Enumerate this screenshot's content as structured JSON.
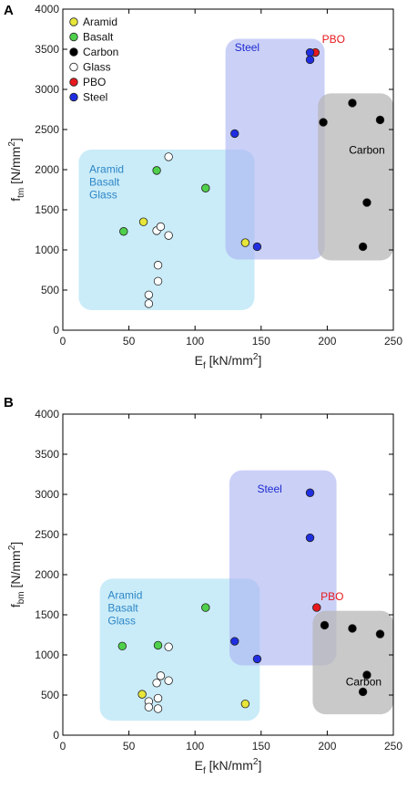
{
  "colors": {
    "Aramid": "#e7e639",
    "Basalt": "#4fd04a",
    "Carbon": "#000000",
    "Glass": "#ffffff",
    "PBO": "#e6191e",
    "Steel": "#1f2ee0",
    "region_glass": "#9fdcf2",
    "region_steel": "#a8b0f2",
    "region_carbon": "#b7b7b7",
    "region_glass_text": "#2e86c8",
    "region_steel_text": "#1d2bd0",
    "region_carbon_text": "#000000",
    "pbo_text": "#e6191e"
  },
  "legend": [
    "Aramid",
    "Basalt",
    "Carbon",
    "Glass",
    "PBO",
    "Steel"
  ],
  "chart_data": [
    {
      "panel": "A",
      "type": "scatter",
      "xlabel": {
        "main": "E",
        "sub": "f",
        "unit": " [kN/mm",
        "sup": "2",
        "close": "]"
      },
      "ylabel": {
        "main": "f",
        "sub": "tm",
        "unit": " [N/mm",
        "sup": "2",
        "close": "]"
      },
      "xlim": [
        0,
        250
      ],
      "ylim": [
        0,
        4000
      ],
      "xticks": [
        "0",
        "50",
        "100",
        "150",
        "200",
        "250"
      ],
      "yticks": [
        "0",
        "500",
        "1000",
        "1500",
        "2000",
        "2500",
        "3000",
        "3500",
        "4000"
      ],
      "xtick_values": [
        0,
        50,
        100,
        150,
        200,
        250
      ],
      "ytick_values": [
        0,
        500,
        1000,
        1500,
        2000,
        2500,
        3000,
        3500,
        4000
      ],
      "has_legend": true,
      "regions": [
        {
          "name": "glass",
          "labels": [
            "Aramid",
            "Basalt",
            "Glass"
          ],
          "x": [
            12,
            145
          ],
          "y": [
            250,
            2250
          ],
          "label_at": [
            20,
            1960
          ]
        },
        {
          "name": "steel",
          "labels": [
            "Steel"
          ],
          "x": [
            123,
            198
          ],
          "y": [
            880,
            3630
          ],
          "label_at": [
            130,
            3480
          ]
        },
        {
          "name": "carbon",
          "labels": [
            "Carbon"
          ],
          "x": [
            193,
            250
          ],
          "y": [
            870,
            2950
          ],
          "label_at": [
            230,
            2200
          ]
        }
      ],
      "annotations": [
        {
          "text": "PBO",
          "x": 196,
          "y": 3580
        }
      ],
      "series": [
        {
          "name": "Aramid",
          "x": [
            61,
            138
          ],
          "y": [
            1350,
            1090
          ]
        },
        {
          "name": "Basalt",
          "x": [
            46,
            71,
            108
          ],
          "y": [
            1230,
            1990,
            1770
          ]
        },
        {
          "name": "Carbon",
          "x": [
            197,
            219,
            240,
            230,
            227
          ],
          "y": [
            2590,
            2830,
            2620,
            1590,
            1040
          ]
        },
        {
          "name": "Glass",
          "x": [
            80,
            71,
            74,
            80,
            72,
            72,
            65,
            65
          ],
          "y": [
            2160,
            1240,
            1290,
            1180,
            810,
            610,
            440,
            330
          ]
        },
        {
          "name": "PBO",
          "x": [
            191
          ],
          "y": [
            3460
          ]
        },
        {
          "name": "Steel",
          "x": [
            187,
            187,
            130,
            147
          ],
          "y": [
            3460,
            3370,
            2450,
            1040
          ]
        }
      ]
    },
    {
      "panel": "B",
      "type": "scatter",
      "xlabel": {
        "main": "E",
        "sub": "f",
        "unit": " [kN/mm",
        "sup": "2",
        "close": "]"
      },
      "ylabel": {
        "main": "f",
        "sub": "bm",
        "unit": " [N/mm",
        "sup": "2",
        "close": "]"
      },
      "xlim": [
        0,
        250
      ],
      "ylim": [
        0,
        4000
      ],
      "xticks": [
        "0",
        "50",
        "100",
        "150",
        "200",
        "250"
      ],
      "yticks": [
        "0",
        "500",
        "1000",
        "1500",
        "2000",
        "2500",
        "3000",
        "3500",
        "4000"
      ],
      "xtick_values": [
        0,
        50,
        100,
        150,
        200,
        250
      ],
      "ytick_values": [
        0,
        500,
        1000,
        1500,
        2000,
        2500,
        3000,
        3500,
        4000
      ],
      "has_legend": false,
      "regions": [
        {
          "name": "glass",
          "labels": [
            "Aramid",
            "Basalt",
            "Glass"
          ],
          "x": [
            28,
            149
          ],
          "y": [
            180,
            1950
          ],
          "label_at": [
            34,
            1700
          ]
        },
        {
          "name": "steel",
          "labels": [
            "Steel"
          ],
          "x": [
            126,
            207
          ],
          "y": [
            870,
            3300
          ],
          "label_at": [
            147,
            3020
          ]
        },
        {
          "name": "carbon",
          "labels": [
            "Carbon"
          ],
          "x": [
            189,
            250
          ],
          "y": [
            260,
            1550
          ],
          "label_at": [
            214,
            620
          ]
        }
      ],
      "annotations": [
        {
          "text": "PBO",
          "x": 195,
          "y": 1680
        }
      ],
      "series": [
        {
          "name": "Aramid",
          "x": [
            60,
            138
          ],
          "y": [
            510,
            390
          ]
        },
        {
          "name": "Basalt",
          "x": [
            45,
            72,
            108
          ],
          "y": [
            1110,
            1120,
            1590
          ]
        },
        {
          "name": "Carbon",
          "x": [
            198,
            219,
            240,
            230,
            227
          ],
          "y": [
            1370,
            1330,
            1260,
            750,
            540
          ]
        },
        {
          "name": "Glass",
          "x": [
            80,
            74,
            71,
            80,
            72,
            65,
            65,
            72
          ],
          "y": [
            1100,
            740,
            650,
            680,
            460,
            420,
            350,
            330
          ]
        },
        {
          "name": "PBO",
          "x": [
            192
          ],
          "y": [
            1590
          ]
        },
        {
          "name": "Steel",
          "x": [
            187,
            187,
            130,
            147
          ],
          "y": [
            3020,
            2460,
            1170,
            950
          ]
        }
      ]
    }
  ]
}
